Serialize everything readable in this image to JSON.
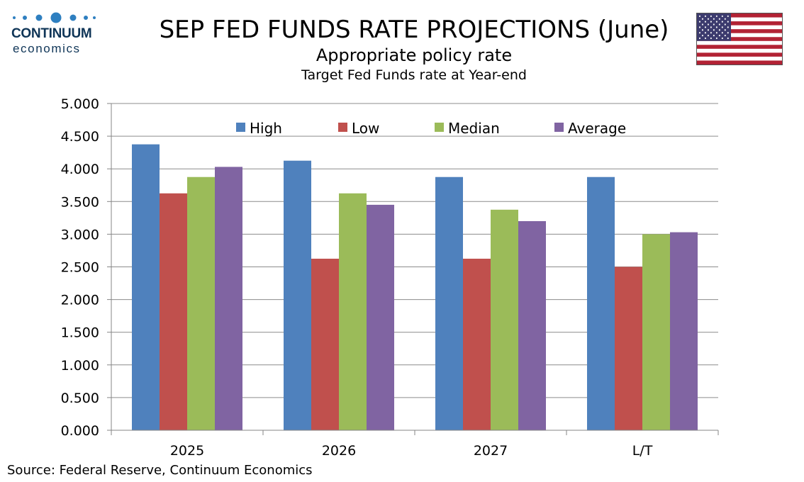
{
  "logo": {
    "brand": "CONTINUUM",
    "sub": "economics",
    "color": "#0f3557"
  },
  "flag": {
    "name": "us-flag-icon"
  },
  "source": "Source: Federal Reserve, Continuum Economics",
  "chart_data": {
    "type": "bar",
    "title": "SEP FED FUNDS RATE PROJECTIONS (June)",
    "subtitle": "Appropriate policy rate",
    "subtitle2": "Target Fed Funds rate at Year-end",
    "categories": [
      "2025",
      "2026",
      "2027",
      "L/T"
    ],
    "series": [
      {
        "name": "High",
        "color": "#4f81bd",
        "values": [
          4.375,
          4.125,
          3.875,
          3.875
        ]
      },
      {
        "name": "Low",
        "color": "#c0504d",
        "values": [
          3.625,
          2.625,
          2.625,
          2.5
        ]
      },
      {
        "name": "Median",
        "color": "#9bbb59",
        "values": [
          3.875,
          3.625,
          3.375,
          3.0
        ]
      },
      {
        "name": "Average",
        "color": "#8064a2",
        "values": [
          4.03,
          3.45,
          3.2,
          3.03
        ]
      }
    ],
    "ylim": [
      0,
      5
    ],
    "yticks": [
      "0.000",
      "0.500",
      "1.000",
      "1.500",
      "2.000",
      "2.500",
      "3.000",
      "3.500",
      "4.000",
      "4.500",
      "5.000"
    ],
    "grid": true,
    "legend_position": "top"
  }
}
